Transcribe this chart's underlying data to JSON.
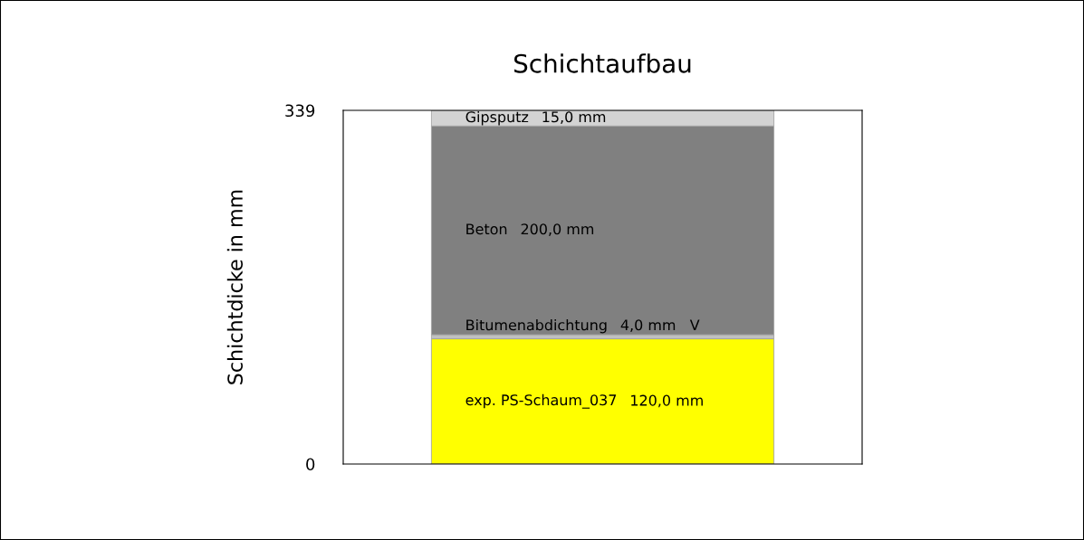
{
  "chart_data": {
    "type": "bar",
    "stacked": true,
    "title": "Schichtaufbau",
    "ylabel": "Schichtdicke in mm",
    "categories": [
      null
    ],
    "series": [
      {
        "name": "exp. PS-Schaum_037",
        "color": "#ffff00",
        "values": [
          120
        ],
        "value_labels": [
          "120,0 mm"
        ]
      },
      {
        "name": "Bitumenabdichtung",
        "color": "#c0c0c0",
        "values": [
          4
        ],
        "value_labels": [
          "4,0 mm   V"
        ]
      },
      {
        "name": "Beton",
        "color": "#808080",
        "values": [
          200
        ],
        "value_labels": [
          "200,0 mm"
        ]
      },
      {
        "name": "Gipsputz",
        "color": "#d3d3d3",
        "values": [
          15
        ],
        "value_labels": [
          "15,0 mm"
        ]
      }
    ],
    "ylim": [
      0,
      339
    ],
    "yticks": [
      0,
      339
    ],
    "tick_labels": "y",
    "grid": false
  }
}
